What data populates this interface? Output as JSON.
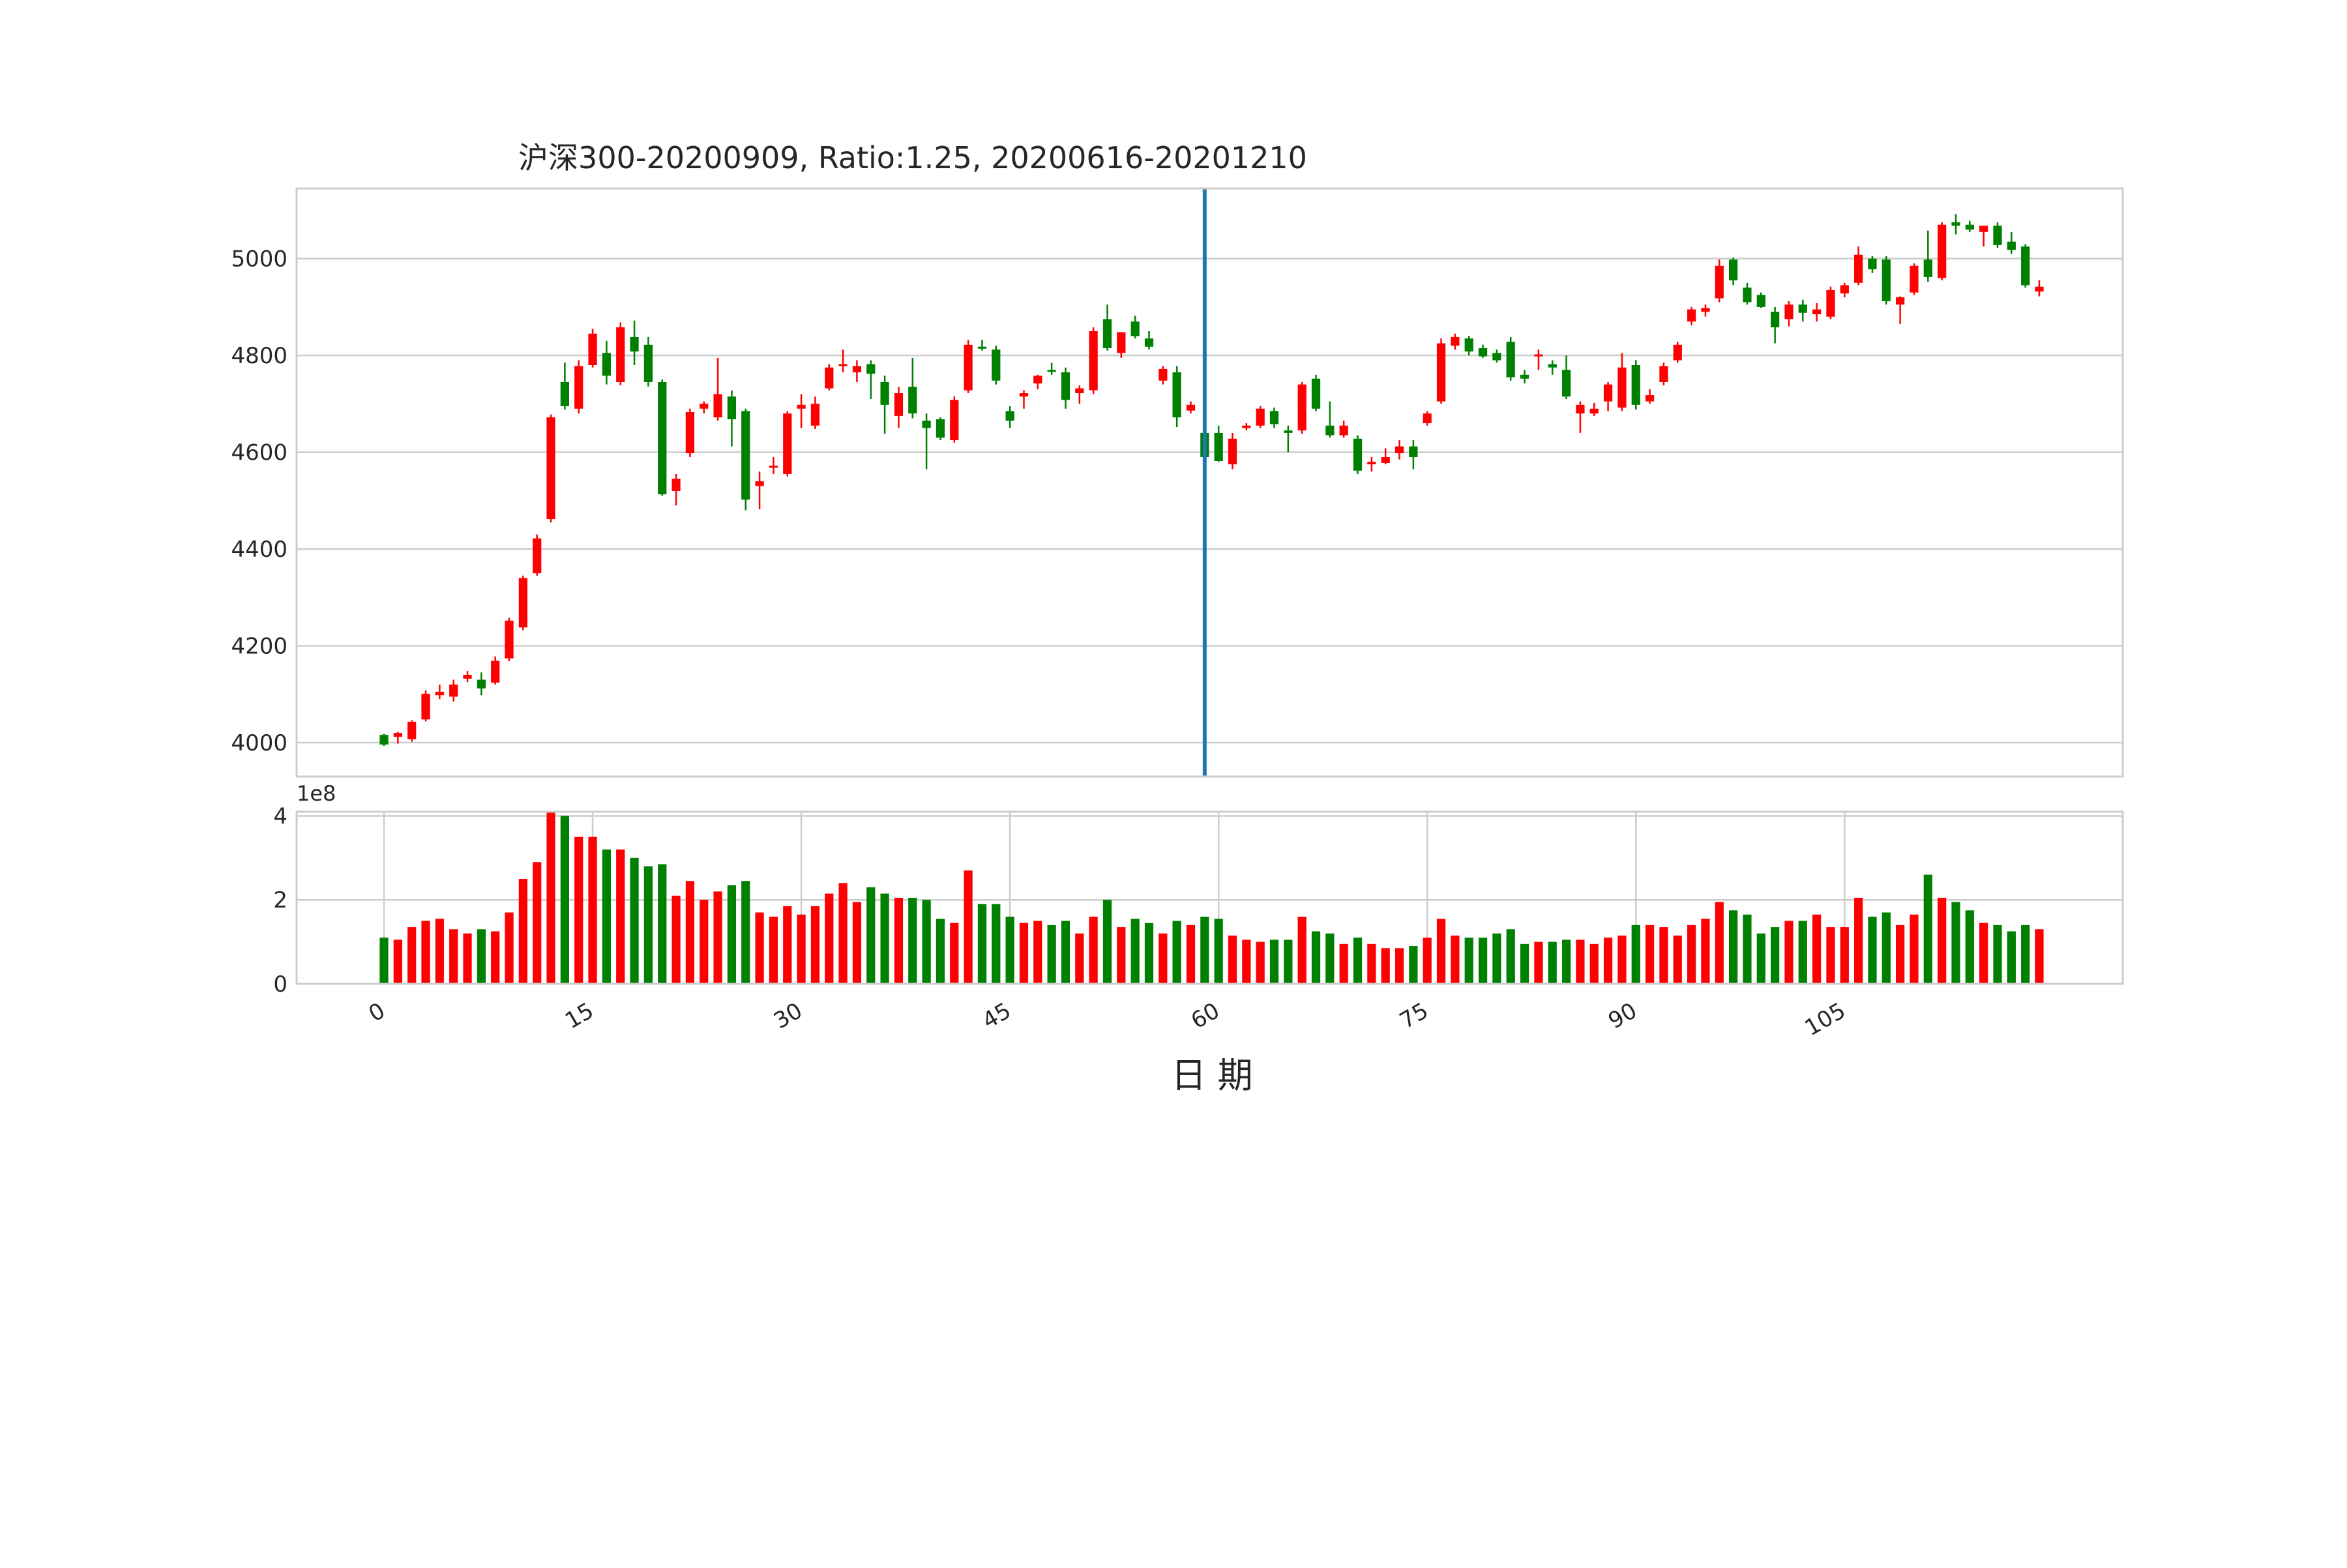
{
  "chart_data": [
    {
      "type": "candlestick",
      "title": "沪深300-20200909, Ratio:1.25, 20200616-20201210",
      "ylim": [
        3930,
        5145
      ],
      "yticks": [
        "4000",
        "4200",
        "4400",
        "4600",
        "4800",
        "5000"
      ],
      "grid": true,
      "colors": {
        "up": "#ff0000",
        "down": "#008000",
        "marker": "#1f77b4"
      },
      "marker_line_x": 59,
      "ohlc": [
        [
          4016,
          4018,
          3993,
          3996
        ],
        [
          4012,
          4022,
          3998,
          4020
        ],
        [
          4007,
          4046,
          4002,
          4043
        ],
        [
          4048,
          4108,
          4044,
          4101
        ],
        [
          4098,
          4120,
          4090,
          4105
        ],
        [
          4095,
          4130,
          4085,
          4120
        ],
        [
          4132,
          4148,
          4125,
          4140
        ],
        [
          4130,
          4145,
          4098,
          4112
        ],
        [
          4124,
          4178,
          4120,
          4169
        ],
        [
          4174,
          4258,
          4168,
          4252
        ],
        [
          4238,
          4345,
          4232,
          4340
        ],
        [
          4350,
          4430,
          4345,
          4422
        ],
        [
          4462,
          4678,
          4455,
          4672
        ],
        [
          4745,
          4785,
          4688,
          4695
        ],
        [
          4690,
          4790,
          4680,
          4778
        ],
        [
          4780,
          4855,
          4775,
          4845
        ],
        [
          4805,
          4830,
          4740,
          4758
        ],
        [
          4745,
          4868,
          4738,
          4858
        ],
        [
          4838,
          4872,
          4780,
          4808
        ],
        [
          4822,
          4838,
          4736,
          4745
        ],
        [
          4745,
          4750,
          4510,
          4513
        ],
        [
          4520,
          4555,
          4490,
          4545
        ],
        [
          4598,
          4690,
          4590,
          4683
        ],
        [
          4690,
          4705,
          4680,
          4700
        ],
        [
          4672,
          4795,
          4665,
          4720
        ],
        [
          4715,
          4728,
          4612,
          4668
        ],
        [
          4685,
          4690,
          4480,
          4502
        ],
        [
          4530,
          4560,
          4482,
          4540
        ],
        [
          4570,
          4590,
          4555,
          4572
        ],
        [
          4555,
          4685,
          4550,
          4680
        ],
        [
          4690,
          4720,
          4650,
          4698
        ],
        [
          4655,
          4715,
          4648,
          4700
        ],
        [
          4732,
          4782,
          4728,
          4775
        ],
        [
          4780,
          4812,
          4765,
          4782
        ],
        [
          4765,
          4790,
          4745,
          4778
        ],
        [
          4782,
          4790,
          4710,
          4762
        ],
        [
          4745,
          4758,
          4638,
          4698
        ],
        [
          4675,
          4735,
          4650,
          4722
        ],
        [
          4735,
          4795,
          4670,
          4680
        ],
        [
          4665,
          4680,
          4565,
          4650
        ],
        [
          4668,
          4672,
          4625,
          4630
        ],
        [
          4625,
          4715,
          4620,
          4708
        ],
        [
          4728,
          4832,
          4722,
          4822
        ],
        [
          4818,
          4832,
          4810,
          4814
        ],
        [
          4812,
          4820,
          4740,
          4748
        ],
        [
          4685,
          4695,
          4650,
          4665
        ],
        [
          4715,
          4728,
          4690,
          4722
        ],
        [
          4742,
          4760,
          4730,
          4758
        ],
        [
          4770,
          4785,
          4760,
          4766
        ],
        [
          4765,
          4775,
          4690,
          4708
        ],
        [
          4722,
          4738,
          4700,
          4732
        ],
        [
          4728,
          4858,
          4720,
          4850
        ],
        [
          4875,
          4905,
          4810,
          4815
        ],
        [
          4805,
          4848,
          4795,
          4848
        ],
        [
          4870,
          4882,
          4835,
          4840
        ],
        [
          4835,
          4850,
          4812,
          4818
        ],
        [
          4748,
          4778,
          4740,
          4772
        ],
        [
          4765,
          4778,
          4652,
          4672
        ],
        [
          4686,
          4705,
          4680,
          4698
        ],
        [
          4640,
          4648,
          4585,
          4590
        ],
        [
          4640,
          4655,
          4580,
          4582
        ],
        [
          4575,
          4640,
          4565,
          4628
        ],
        [
          4650,
          4660,
          4645,
          4655
        ],
        [
          4655,
          4695,
          4650,
          4690
        ],
        [
          4685,
          4692,
          4650,
          4658
        ],
        [
          4645,
          4655,
          4600,
          4640
        ],
        [
          4645,
          4745,
          4638,
          4740
        ],
        [
          4752,
          4760,
          4685,
          4690
        ],
        [
          4655,
          4705,
          4630,
          4635
        ],
        [
          4635,
          4665,
          4630,
          4655
        ],
        [
          4628,
          4635,
          4555,
          4562
        ],
        [
          4575,
          4590,
          4560,
          4580
        ],
        [
          4578,
          4608,
          4575,
          4590
        ],
        [
          4598,
          4625,
          4585,
          4612
        ],
        [
          4612,
          4625,
          4565,
          4590
        ],
        [
          4660,
          4685,
          4655,
          4680
        ],
        [
          4705,
          4835,
          4700,
          4825
        ],
        [
          4820,
          4845,
          4812,
          4838
        ],
        [
          4835,
          4840,
          4800,
          4808
        ],
        [
          4815,
          4822,
          4795,
          4798
        ],
        [
          4805,
          4812,
          4785,
          4790
        ],
        [
          4828,
          4838,
          4748,
          4755
        ],
        [
          4760,
          4770,
          4742,
          4752
        ],
        [
          4798,
          4812,
          4770,
          4802
        ],
        [
          4782,
          4790,
          4760,
          4775
        ],
        [
          4770,
          4800,
          4710,
          4715
        ],
        [
          4680,
          4705,
          4640,
          4698
        ],
        [
          4680,
          4702,
          4675,
          4690
        ],
        [
          4705,
          4745,
          4685,
          4740
        ],
        [
          4692,
          4805,
          4685,
          4775
        ],
        [
          4780,
          4790,
          4688,
          4698
        ],
        [
          4705,
          4730,
          4700,
          4718
        ],
        [
          4745,
          4785,
          4738,
          4778
        ],
        [
          4790,
          4828,
          4785,
          4822
        ],
        [
          4870,
          4900,
          4862,
          4895
        ],
        [
          4890,
          4905,
          4880,
          4898
        ],
        [
          4918,
          4998,
          4910,
          4985
        ],
        [
          4998,
          5002,
          4945,
          4955
        ],
        [
          4940,
          4950,
          4905,
          4910
        ],
        [
          4925,
          4930,
          4898,
          4900
        ],
        [
          4890,
          4900,
          4825,
          4858
        ],
        [
          4875,
          4912,
          4860,
          4905
        ],
        [
          4905,
          4915,
          4870,
          4888
        ],
        [
          4885,
          4908,
          4870,
          4895
        ],
        [
          4880,
          4942,
          4875,
          4935
        ],
        [
          4928,
          4950,
          4920,
          4945
        ],
        [
          4950,
          5025,
          4945,
          5008
        ],
        [
          5000,
          5005,
          4970,
          4978
        ],
        [
          4998,
          5005,
          4905,
          4912
        ],
        [
          4905,
          4922,
          4865,
          4920
        ],
        [
          4930,
          4990,
          4925,
          4985
        ],
        [
          4998,
          5058,
          4952,
          4962
        ],
        [
          4960,
          5075,
          4955,
          5070
        ],
        [
          5075,
          5092,
          5050,
          5068
        ],
        [
          5070,
          5078,
          5055,
          5060
        ],
        [
          5055,
          5068,
          5025,
          5068
        ],
        [
          5068,
          5075,
          5022,
          5028
        ],
        [
          5035,
          5055,
          5010,
          5018
        ],
        [
          5025,
          5030,
          4940,
          4945
        ],
        [
          4932,
          4955,
          4922,
          4942
        ]
      ]
    },
    {
      "type": "bar",
      "title": "",
      "xlabel": "日 期",
      "ylim": [
        0,
        4.1
      ],
      "yticks": [
        "0",
        "2",
        "4"
      ],
      "offset_text": "1e8",
      "xtick_values": [
        0,
        15,
        30,
        45,
        60,
        75,
        90,
        105
      ],
      "xticks": [
        "0",
        "15",
        "30",
        "45",
        "60",
        "75",
        "90",
        "105"
      ],
      "grid": true,
      "volume": [
        1.1,
        1.05,
        1.35,
        1.5,
        1.55,
        1.3,
        1.2,
        1.3,
        1.25,
        1.7,
        2.5,
        2.9,
        4.1,
        4.0,
        3.5,
        3.5,
        3.2,
        3.2,
        3.0,
        2.8,
        2.85,
        2.1,
        2.45,
        2.0,
        2.2,
        2.35,
        2.45,
        1.7,
        1.6,
        1.85,
        1.65,
        1.85,
        2.15,
        2.4,
        1.95,
        2.3,
        2.15,
        2.05,
        2.05,
        2.0,
        1.55,
        1.45,
        2.7,
        1.9,
        1.9,
        1.6,
        1.45,
        1.5,
        1.4,
        1.5,
        1.2,
        1.6,
        2.0,
        1.35,
        1.55,
        1.45,
        1.2,
        1.5,
        1.4,
        1.6,
        1.55,
        1.15,
        1.05,
        1.0,
        1.05,
        1.05,
        1.6,
        1.25,
        1.2,
        0.95,
        1.1,
        0.95,
        0.85,
        0.85,
        0.9,
        1.1,
        1.55,
        1.15,
        1.1,
        1.1,
        1.2,
        1.3,
        0.95,
        1.0,
        1.0,
        1.05,
        1.05,
        0.95,
        1.1,
        1.15,
        1.4,
        1.4,
        1.35,
        1.15,
        1.4,
        1.55,
        1.95,
        1.75,
        1.65,
        1.2,
        1.35,
        1.5,
        1.5,
        1.65,
        1.35,
        1.35,
        2.05,
        1.6,
        1.7,
        1.4,
        1.65,
        2.6,
        2.05,
        1.95,
        1.75,
        1.45,
        1.4,
        1.25,
        1.4,
        1.3
      ]
    }
  ]
}
